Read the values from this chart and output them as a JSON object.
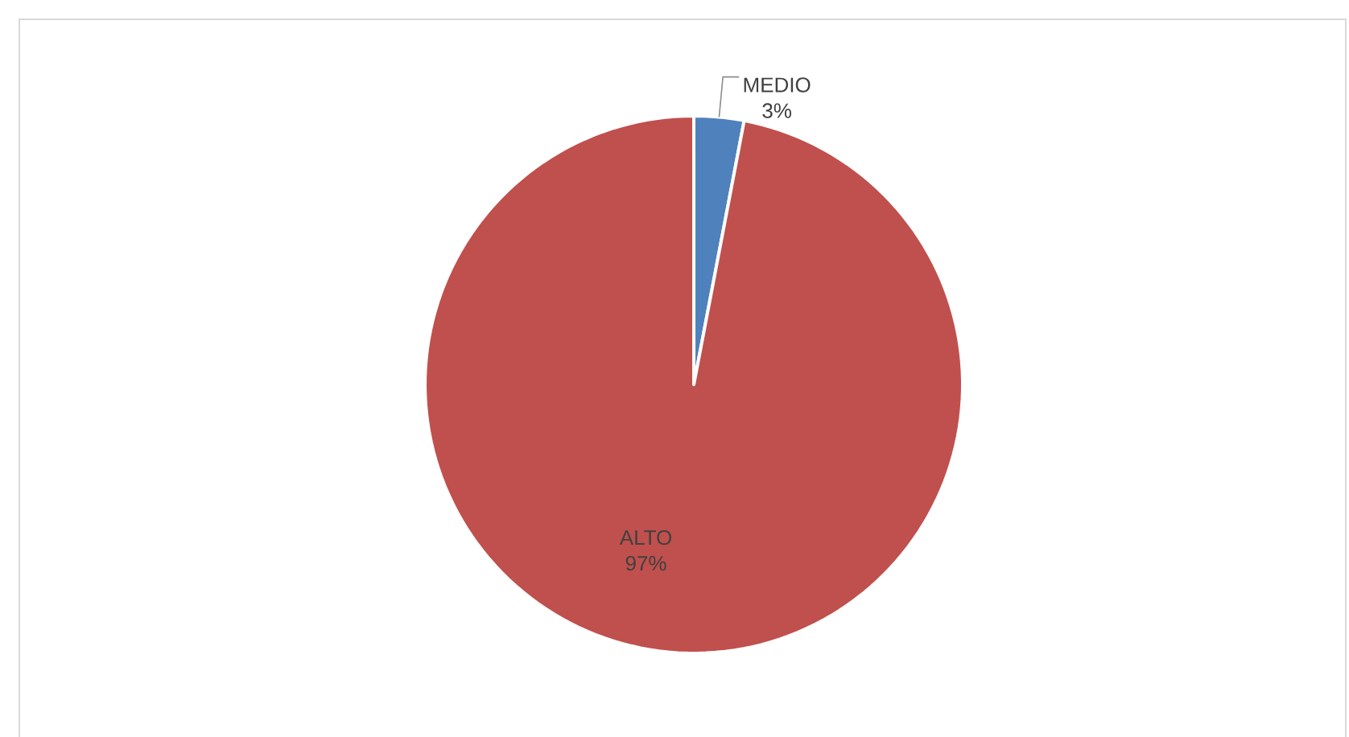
{
  "chart_data": {
    "type": "pie",
    "categories": [
      "MEDIO",
      "ALTO"
    ],
    "values": [
      3,
      97
    ],
    "colors": [
      "#4f81bd",
      "#c0504d"
    ],
    "value_labels": [
      "3%",
      "97%"
    ]
  }
}
